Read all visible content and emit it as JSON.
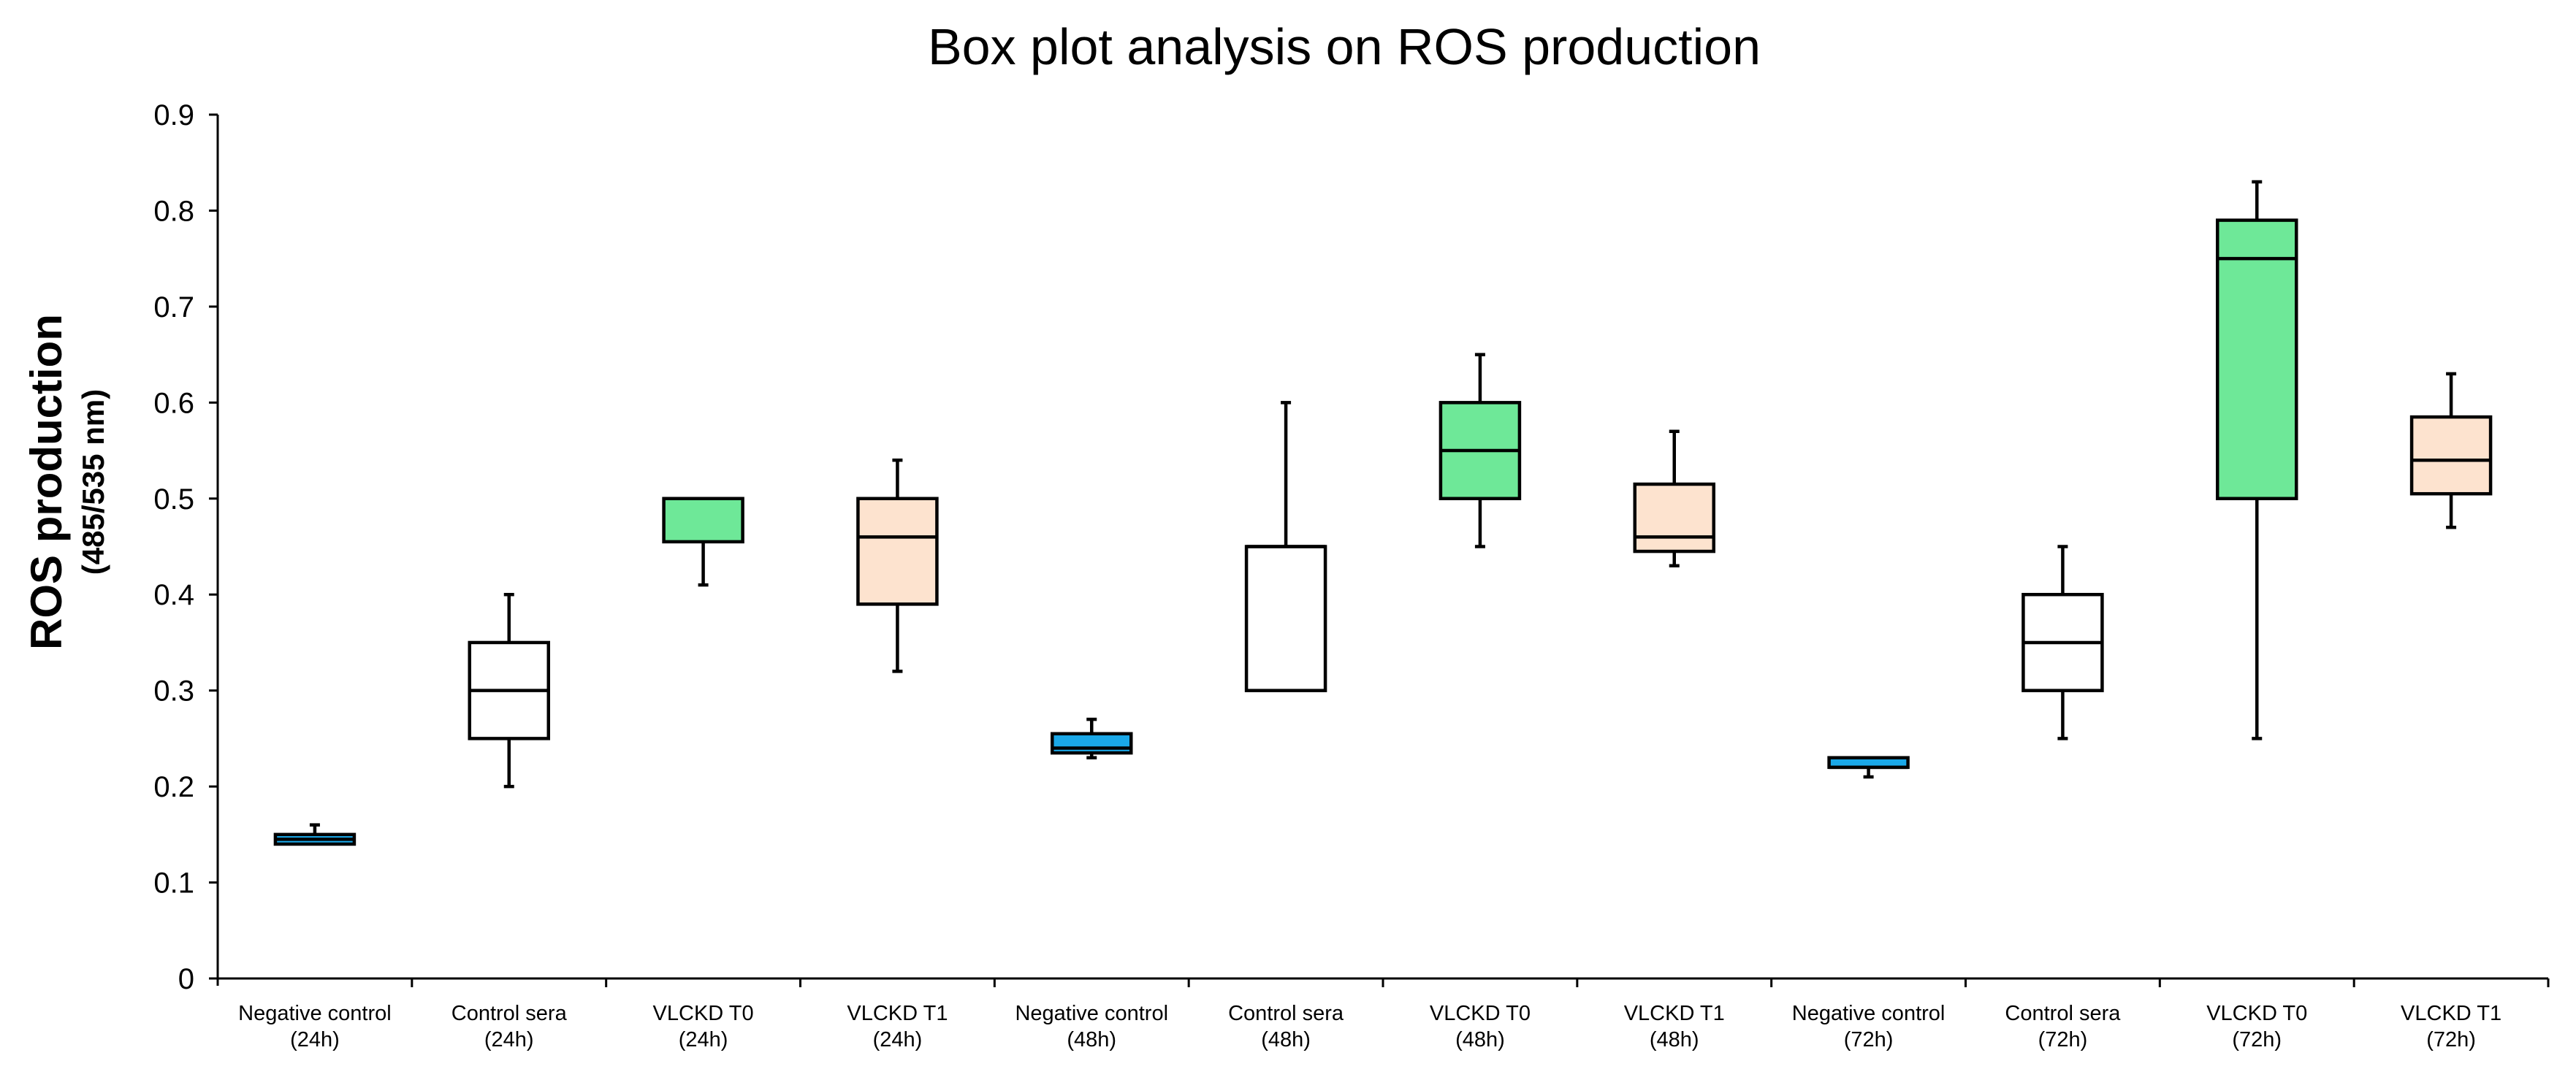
{
  "chart_data": {
    "type": "box",
    "title": "Box plot analysis on ROS production",
    "ylabel": "ROS production",
    "ylabel_units": "(485/535 nm)",
    "xlabel": "",
    "ylim": [
      0,
      0.9
    ],
    "yticks": [
      0,
      0.1,
      0.2,
      0.3,
      0.4,
      0.5,
      0.6,
      0.7,
      0.8,
      0.9
    ],
    "ytick_labels": [
      "0",
      "0.1",
      "0.2",
      "0.3",
      "0.4",
      "0.5",
      "0.6",
      "0.7",
      "0.8",
      "0.9"
    ],
    "grid": false,
    "legend": "none",
    "colors": {
      "negative_control": "#1aa8e8",
      "control_sera": "#ffffff",
      "vlckd_t0": "#6ee898",
      "vlckd_t1": "#fde3cf",
      "outline": "#000000"
    },
    "categories": [
      {
        "line1": "Negative control",
        "line2": "(24h)",
        "group": "negative_control",
        "min": 0.14,
        "q1": 0.14,
        "median": 0.145,
        "q3": 0.15,
        "max": 0.16
      },
      {
        "line1": "Control sera",
        "line2": "(24h)",
        "group": "control_sera",
        "min": 0.2,
        "q1": 0.25,
        "median": 0.3,
        "q3": 0.35,
        "max": 0.4
      },
      {
        "line1": "VLCKD T0",
        "line2": "(24h)",
        "group": "vlckd_t0",
        "min": 0.41,
        "q1": 0.455,
        "median": 0.5,
        "q3": 0.5,
        "max": 0.5
      },
      {
        "line1": "VLCKD T1",
        "line2": "(24h)",
        "group": "vlckd_t1",
        "min": 0.32,
        "q1": 0.39,
        "median": 0.46,
        "q3": 0.5,
        "max": 0.54
      },
      {
        "line1": "Negative control",
        "line2": "(48h)",
        "group": "negative_control",
        "min": 0.23,
        "q1": 0.235,
        "median": 0.24,
        "q3": 0.255,
        "max": 0.27
      },
      {
        "line1": "Control sera",
        "line2": "(48h)",
        "group": "control_sera",
        "min": 0.3,
        "q1": 0.3,
        "median": 0.45,
        "q3": 0.45,
        "max": 0.6
      },
      {
        "line1": "VLCKD T0",
        "line2": "(48h)",
        "group": "vlckd_t0",
        "min": 0.45,
        "q1": 0.5,
        "median": 0.55,
        "q3": 0.6,
        "max": 0.65
      },
      {
        "line1": "VLCKD T1",
        "line2": "(48h)",
        "group": "vlckd_t1",
        "min": 0.43,
        "q1": 0.445,
        "median": 0.46,
        "q3": 0.515,
        "max": 0.57
      },
      {
        "line1": "Negative control",
        "line2": "(72h)",
        "group": "negative_control",
        "min": 0.21,
        "q1": 0.22,
        "median": 0.22,
        "q3": 0.23,
        "max": 0.23
      },
      {
        "line1": "Control sera",
        "line2": "(72h)",
        "group": "control_sera",
        "min": 0.25,
        "q1": 0.3,
        "median": 0.35,
        "q3": 0.4,
        "max": 0.45
      },
      {
        "line1": "VLCKD T0",
        "line2": "(72h)",
        "group": "vlckd_t0",
        "min": 0.25,
        "q1": 0.5,
        "median": 0.75,
        "q3": 0.79,
        "max": 0.83
      },
      {
        "line1": "VLCKD T1",
        "line2": "(72h)",
        "group": "vlckd_t1",
        "min": 0.47,
        "q1": 0.505,
        "median": 0.54,
        "q3": 0.585,
        "max": 0.63
      }
    ]
  }
}
